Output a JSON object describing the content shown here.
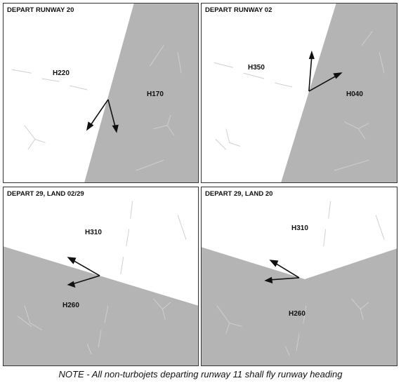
{
  "panels": [
    {
      "title": "DEPART RUNWAY 20",
      "headings": [
        "H220",
        "H170"
      ]
    },
    {
      "title": "DEPART RUNWAY 02",
      "headings": [
        "H350",
        "H040"
      ]
    },
    {
      "title": "DEPART 29, LAND 02/29",
      "headings": [
        "H310",
        "H260"
      ]
    },
    {
      "title": "DEPART 29, LAND 20",
      "headings": [
        "H310",
        "H260"
      ]
    }
  ],
  "note": "NOTE - All non-turbojets departing runway 11 shall fly runway heading",
  "colors": {
    "shade": "#b4b4b4",
    "arrow": "#111111",
    "border": "#333333"
  }
}
